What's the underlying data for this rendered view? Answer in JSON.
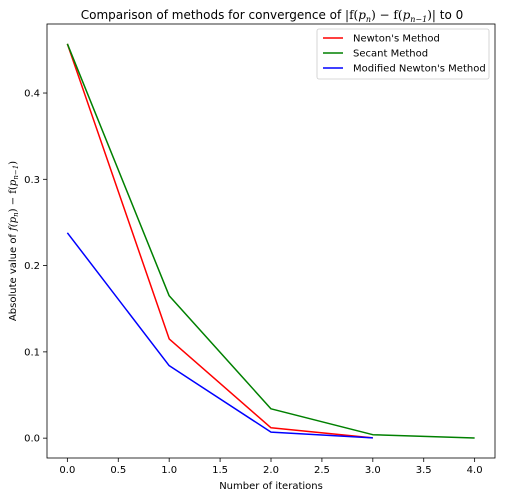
{
  "chart_data": {
    "type": "line",
    "title_prefix": "Comparison of methods for convergence of ",
    "title_math_left": "|f(",
    "title_math_p": "p",
    "title_math_n": "n",
    "title_math_mid": ") − f(",
    "title_math_n1": "n−1",
    "title_math_right": ")|",
    "title_suffix": " to 0",
    "xlabel": "Number of iterations",
    "ylabel_prefix": "Absolute value of ",
    "ylabel_math_1": "f(",
    "ylabel_math_n": "n",
    "ylabel_math_2": ") − f(",
    "ylabel_math_n1": "n−1",
    "ylabel_math_3": ")",
    "xlim": [
      -0.2,
      4.2
    ],
    "ylim": [
      -0.023,
      0.48
    ],
    "xticks": [
      0.0,
      0.5,
      1.0,
      1.5,
      2.0,
      2.5,
      3.0,
      3.5,
      4.0
    ],
    "xtick_labels": [
      "0.0",
      "0.5",
      "1.0",
      "1.5",
      "2.0",
      "2.5",
      "3.0",
      "3.5",
      "4.0"
    ],
    "yticks": [
      0.0,
      0.1,
      0.2,
      0.3,
      0.4
    ],
    "ytick_labels": [
      "0.0",
      "0.1",
      "0.2",
      "0.3",
      "0.4"
    ],
    "grid": false,
    "legend_position": "top-right",
    "series": [
      {
        "name": "Newton's Method",
        "color": "#ff0000",
        "x": [
          0,
          1,
          2,
          3
        ],
        "y": [
          0.457,
          0.115,
          0.012,
          0.0003
        ]
      },
      {
        "name": "Secant Method",
        "color": "#008000",
        "x": [
          0,
          1,
          2,
          3,
          4
        ],
        "y": [
          0.457,
          0.165,
          0.034,
          0.004,
          0.0002
        ]
      },
      {
        "name": "Modified Newton's Method",
        "color": "#0000ff",
        "x": [
          0,
          1,
          2,
          3
        ],
        "y": [
          0.238,
          0.084,
          0.007,
          0.0003
        ]
      }
    ]
  }
}
